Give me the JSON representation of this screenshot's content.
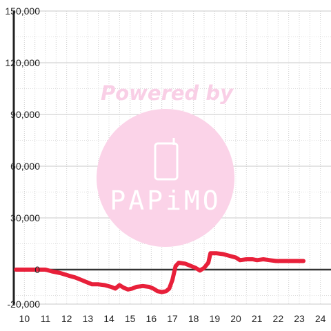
{
  "chart_data": {
    "type": "line",
    "title": "",
    "xlabel": "",
    "ylabel": "",
    "xlim": [
      9.5,
      24.5
    ],
    "ylim": [
      -20000,
      150000
    ],
    "x_ticks": [
      "10",
      "11",
      "12",
      "13",
      "14",
      "15",
      "16",
      "17",
      "18",
      "19",
      "20",
      "21",
      "22",
      "23",
      "24"
    ],
    "y_ticks": [
      {
        "value": 150000,
        "label": "150,000"
      },
      {
        "value": 120000,
        "label": "120,000"
      },
      {
        "value": 90000,
        "label": "90,000"
      },
      {
        "value": 60000,
        "label": "60,000"
      },
      {
        "value": 30000,
        "label": "30,000"
      },
      {
        "value": 0,
        "label": "0"
      },
      {
        "value": -20000,
        "label": "-20,000"
      }
    ],
    "grid": true,
    "legend": "none",
    "series": [
      {
        "color": "#e8203a",
        "x": [
          9.6,
          10.5,
          11.0,
          11.3,
          11.7,
          12.1,
          12.4,
          12.7,
          13.0,
          13.2,
          13.5,
          13.8,
          14.1,
          14.3,
          14.5,
          14.7,
          14.9,
          15.1,
          15.3,
          15.6,
          15.9,
          16.1,
          16.3,
          16.5,
          16.7,
          16.85,
          17.0,
          17.15,
          17.3,
          17.6,
          17.9,
          18.1,
          18.3,
          18.5,
          18.7,
          18.8,
          19.1,
          19.4,
          19.7,
          20.0,
          20.2,
          20.5,
          20.8,
          21.0,
          21.3,
          21.6,
          21.9,
          22.2,
          22.5,
          22.8,
          23.2
        ],
        "y": [
          0,
          0,
          0,
          -1000,
          -2000,
          -3500,
          -4500,
          -6000,
          -7500,
          -8500,
          -8500,
          -9000,
          -10000,
          -11000,
          -9000,
          -10500,
          -11500,
          -11000,
          -10000,
          -9500,
          -10000,
          -11000,
          -12500,
          -13000,
          -12500,
          -11000,
          -6000,
          2000,
          4000,
          3500,
          2000,
          1000,
          -500,
          1000,
          4000,
          9500,
          9500,
          9000,
          8000,
          7000,
          5500,
          6000,
          6000,
          5500,
          6000,
          5500,
          5000,
          5000,
          5000,
          5000,
          5000
        ]
      }
    ]
  },
  "watermark": {
    "text": "Powered by",
    "brand": "PAPiMO"
  }
}
